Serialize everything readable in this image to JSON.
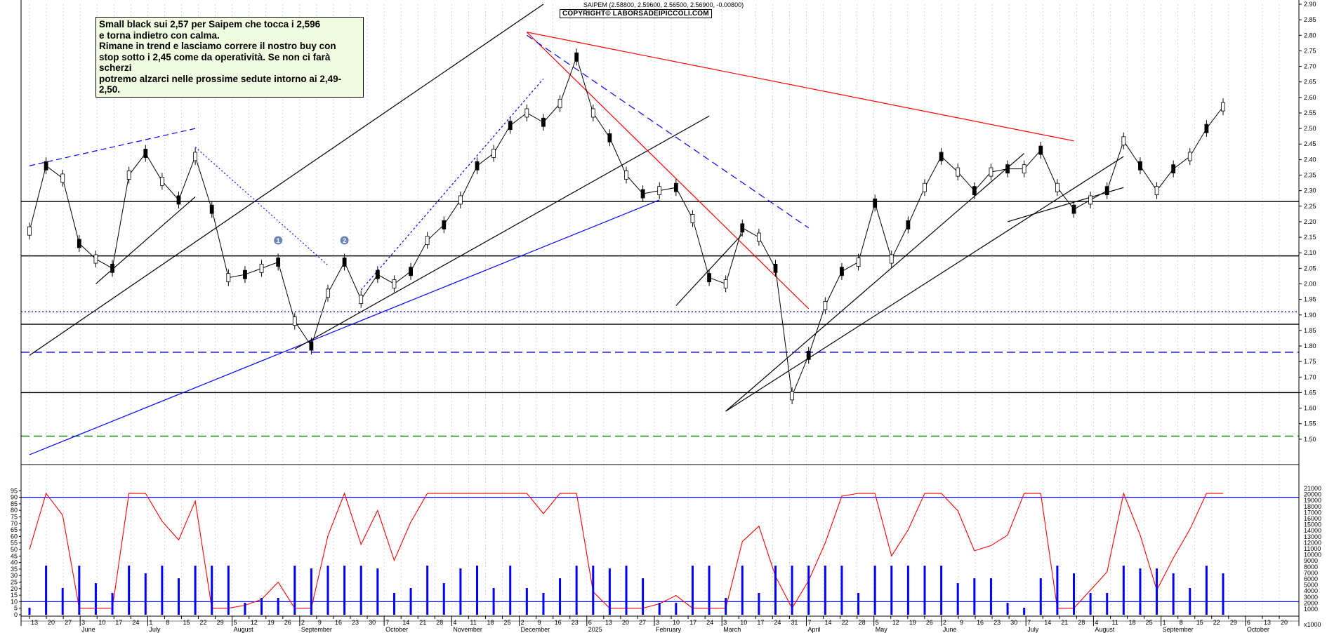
{
  "header": {
    "ticker_line": "SAIPEM (2.58800, 2.59600, 2.56500, 2.56900, -0.00800)",
    "copyright": "COPYRIGHT© LABORSADEIPICCOLI.COM"
  },
  "annotation": {
    "text": "Small black sui 2,57 per Saipem che tocca i 2,596\ne torna indietro con calma.\nRimane in trend e lasciamo correre il nostro buy con\nstop sotto i 2,45 come da operatività. Se non ci farà scherzi\npotremo alzarci nelle prossime sedute intorno ai 2,49-2,50."
  },
  "chart_data": [
    {
      "type": "candlestick",
      "ylim": [
        1.45,
        2.9
      ],
      "y_ticks": [
        "2.90",
        "2.85",
        "2.80",
        "2.75",
        "2.70",
        "2.65",
        "2.60",
        "2.55",
        "2.50",
        "2.45",
        "2.40",
        "2.35",
        "2.30",
        "2.25",
        "2.20",
        "2.15",
        "2.10",
        "2.05",
        "2.00",
        "1.95",
        "1.90",
        "1.85",
        "1.80",
        "1.75",
        "1.70",
        "1.65",
        "1.60",
        "1.55",
        "1.50"
      ],
      "price_series": [
        {
          "date": "13",
          "close": 2.17
        },
        {
          "date": "20",
          "close": 2.38
        },
        {
          "date": "27",
          "close": 2.34
        },
        {
          "date": "Jun 3",
          "close": 2.13
        },
        {
          "date": "10",
          "close": 2.08
        },
        {
          "date": "17",
          "close": 2.05
        },
        {
          "date": "24",
          "close": 2.35
        },
        {
          "date": "Jul 1",
          "close": 2.42
        },
        {
          "date": "8",
          "close": 2.33
        },
        {
          "date": "15",
          "close": 2.27
        },
        {
          "date": "22",
          "close": 2.41
        },
        {
          "date": "29",
          "close": 2.24
        },
        {
          "date": "Aug 5",
          "close": 2.02
        },
        {
          "date": "12",
          "close": 2.03
        },
        {
          "date": "19",
          "close": 2.05
        },
        {
          "date": "26",
          "close": 2.07
        },
        {
          "date": "Sep 2",
          "close": 1.88
        },
        {
          "date": "9",
          "close": 1.8
        },
        {
          "date": "16",
          "close": 1.97
        },
        {
          "date": "23",
          "close": 2.07
        },
        {
          "date": "30",
          "close": 1.95
        },
        {
          "date": "Oct 7",
          "close": 2.03
        },
        {
          "date": "14",
          "close": 2.0
        },
        {
          "date": "21",
          "close": 2.04
        },
        {
          "date": "28",
          "close": 2.14
        },
        {
          "date": "Nov 4",
          "close": 2.19
        },
        {
          "date": "11",
          "close": 2.27
        },
        {
          "date": "18",
          "close": 2.38
        },
        {
          "date": "25",
          "close": 2.42
        },
        {
          "date": "Dec 2",
          "close": 2.51
        },
        {
          "date": "9",
          "close": 2.55
        },
        {
          "date": "16",
          "close": 2.52
        },
        {
          "date": "23",
          "close": 2.58
        },
        {
          "date": "2025",
          "close": 2.73
        },
        {
          "date": "13",
          "close": 2.55
        },
        {
          "date": "20",
          "close": 2.47
        },
        {
          "date": "27",
          "close": 2.35
        },
        {
          "date": "Feb 3",
          "close": 2.29
        },
        {
          "date": "10",
          "close": 2.3
        },
        {
          "date": "17",
          "close": 2.31
        },
        {
          "date": "24",
          "close": 2.21
        },
        {
          "date": "Mar 3",
          "close": 2.02
        },
        {
          "date": "10",
          "close": 2.0
        },
        {
          "date": "17",
          "close": 2.18
        },
        {
          "date": "24",
          "close": 2.15
        },
        {
          "date": "31",
          "close": 2.05
        },
        {
          "date": "Apr 7",
          "close": 1.64
        },
        {
          "date": "14",
          "close": 1.77
        },
        {
          "date": "22",
          "close": 1.93
        },
        {
          "date": "28",
          "close": 2.04
        },
        {
          "date": "May 5",
          "close": 2.07
        },
        {
          "date": "12",
          "close": 2.26
        },
        {
          "date": "19",
          "close": 2.08
        },
        {
          "date": "26",
          "close": 2.19
        },
        {
          "date": "Jun 2",
          "close": 2.31
        },
        {
          "date": "9",
          "close": 2.41
        },
        {
          "date": "16",
          "close": 2.36
        },
        {
          "date": "23",
          "close": 2.3
        },
        {
          "date": "30",
          "close": 2.36
        },
        {
          "date": "Jul 7",
          "close": 2.37
        },
        {
          "date": "14",
          "close": 2.37
        },
        {
          "date": "21",
          "close": 2.43
        },
        {
          "date": "28",
          "close": 2.31
        },
        {
          "date": "Aug 4",
          "close": 2.24
        },
        {
          "date": "11",
          "close": 2.27
        },
        {
          "date": "18",
          "close": 2.3
        },
        {
          "date": "25",
          "close": 2.46
        },
        {
          "date": "Sep 1",
          "close": 2.38
        },
        {
          "date": "8",
          "close": 2.3
        },
        {
          "date": "15",
          "close": 2.37
        },
        {
          "date": "22",
          "close": 2.41
        },
        {
          "date": "29",
          "close": 2.5
        },
        {
          "date": "Oct 6",
          "close": 2.57
        }
      ],
      "horizontal_levels": [
        {
          "value": 2.265,
          "style": "solid",
          "color": "#000000"
        },
        {
          "value": 2.09,
          "style": "solid",
          "color": "#000000"
        },
        {
          "value": 1.91,
          "style": "dotted",
          "color": "#0000ff"
        },
        {
          "value": 1.87,
          "style": "solid",
          "color": "#000000"
        },
        {
          "value": 1.78,
          "style": "dashed",
          "color": "#0000ff"
        },
        {
          "value": 1.65,
          "style": "solid",
          "color": "#000000"
        },
        {
          "value": 1.51,
          "style": "dashed",
          "color": "#008000"
        }
      ],
      "x_day_ticks": [
        "13",
        "20",
        "27",
        "3",
        "10",
        "17",
        "24",
        "1",
        "8",
        "15",
        "22",
        "29",
        "5",
        "12",
        "19",
        "26",
        "2",
        "9",
        "16",
        "23",
        "30",
        "7",
        "14",
        "21",
        "28",
        "4",
        "11",
        "18",
        "25",
        "2",
        "9",
        "16",
        "23",
        "6",
        "13",
        "20",
        "27",
        "3",
        "10",
        "17",
        "24",
        "3",
        "10",
        "17",
        "24",
        "31",
        "7",
        "14",
        "22",
        "28",
        "5",
        "12",
        "19",
        "26",
        "2",
        "9",
        "16",
        "23",
        "30",
        "7",
        "14",
        "21",
        "28",
        "4",
        "11",
        "18",
        "25",
        "1",
        "8",
        "15",
        "22",
        "29",
        "6",
        "13",
        "20"
      ],
      "x_month_labels": [
        "June",
        "July",
        "August",
        "September",
        "October",
        "November",
        "December",
        "2025",
        "February",
        "March",
        "April",
        "May",
        "June",
        "July",
        "August",
        "September",
        "October"
      ],
      "indicator_markers": [
        "1",
        "2"
      ],
      "colors": {
        "trend_red": "#ff0000",
        "trend_blue": "#0000ff",
        "oscillator": "#ff0000",
        "volume": "#0000ff"
      }
    },
    {
      "type": "line",
      "ylim": [
        0,
        100
      ],
      "y_ticks": [
        "95",
        "90",
        "85",
        "80",
        "75",
        "70",
        "65",
        "60",
        "55",
        "50",
        "45",
        "40",
        "35",
        "30",
        "25",
        "20",
        "15",
        "10",
        "5",
        "0"
      ],
      "oscillator_levels": [
        90,
        10
      ],
      "volume_y_ticks": [
        "21000",
        "20000",
        "19000",
        "18000",
        "17000",
        "16000",
        "15000",
        "14000",
        "13000",
        "12000",
        "11000",
        "10000",
        "9000",
        "8000",
        "7000",
        "6000",
        "5000",
        "4000",
        "3000",
        "2000",
        "1000"
      ],
      "volume_unit_label": "x1000"
    }
  ]
}
